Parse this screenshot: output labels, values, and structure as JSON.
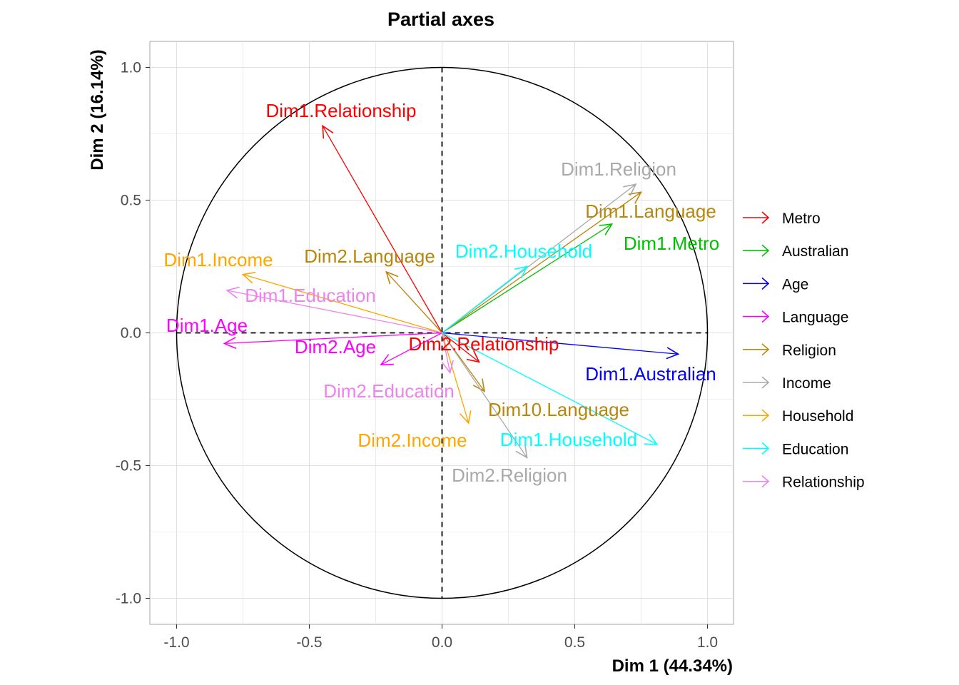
{
  "chart_data": {
    "type": "scatter",
    "title": "Partial axes",
    "xlabel": "Dim 1 (44.34%)",
    "ylabel": "Dim 2 (16.14%)",
    "xlim": [
      -1.1,
      1.1
    ],
    "ylim": [
      -1.1,
      1.1
    ],
    "x_ticks": [
      "-1.0",
      "-0.5",
      "0.0",
      "0.5",
      "1.0"
    ],
    "y_ticks": [
      "-1.0",
      "-0.5",
      "0.0",
      "0.5",
      "1.0"
    ],
    "grid": true,
    "unit_circle": true,
    "legend_position": "right",
    "legend": [
      {
        "name": "Metro",
        "color": "#ff0000"
      },
      {
        "name": "Australian",
        "color": "#00c000"
      },
      {
        "name": "Age",
        "color": "#0000ff"
      },
      {
        "name": "Language",
        "color": "#ff00ff"
      },
      {
        "name": "Religion",
        "color": "#b8860b"
      },
      {
        "name": "Income",
        "color": "#a9a9a9"
      },
      {
        "name": "Household",
        "color": "#ffa500"
      },
      {
        "name": "Education",
        "color": "#00ffff"
      },
      {
        "name": "Relationship",
        "color": "#ee82ee"
      }
    ],
    "vectors": [
      {
        "label": "Dim1.Relationship",
        "x": -0.45,
        "y": 0.78,
        "color": "#ff0000"
      },
      {
        "label": "Dim2.Relationship",
        "x": 0.14,
        "y": -0.11,
        "color": "#ff0000"
      },
      {
        "label": "Dim1.Metro",
        "x": 0.64,
        "y": 0.41,
        "color": "#00c000"
      },
      {
        "label": "Dim1.Australian",
        "x": 0.89,
        "y": -0.08,
        "color": "#0000ff"
      },
      {
        "label": "Dim1.Age",
        "x": -0.82,
        "y": -0.04,
        "color": "#ff00ff"
      },
      {
        "label": "Dim2.Age",
        "x": -0.23,
        "y": -0.12,
        "color": "#ff00ff"
      },
      {
        "label": "Dim1.Language",
        "x": 0.75,
        "y": 0.53,
        "color": "#b8860b"
      },
      {
        "label": "Dim2.Language",
        "x": -0.21,
        "y": 0.23,
        "color": "#b8860b"
      },
      {
        "label": "Dim10.Language",
        "x": 0.16,
        "y": -0.22,
        "color": "#b8860b"
      },
      {
        "label": "Dim1.Religion",
        "x": 0.73,
        "y": 0.56,
        "color": "#a9a9a9"
      },
      {
        "label": "Dim2.Religion",
        "x": 0.32,
        "y": -0.47,
        "color": "#a9a9a9"
      },
      {
        "label": "Dim1.Income",
        "x": -0.75,
        "y": 0.22,
        "color": "#ffa500"
      },
      {
        "label": "Dim2.Income",
        "x": 0.1,
        "y": -0.34,
        "color": "#ffa500"
      },
      {
        "label": "Dim2.Household",
        "x": 0.32,
        "y": 0.25,
        "color": "#00ffff"
      },
      {
        "label": "Dim1.Household",
        "x": 0.81,
        "y": -0.42,
        "color": "#00ffff"
      },
      {
        "label": "Dim1.Education",
        "x": -0.81,
        "y": 0.16,
        "color": "#ee82ee"
      },
      {
        "label": "Dim2.Education",
        "x": 0.03,
        "y": -0.15,
        "color": "#ee82ee"
      }
    ]
  }
}
